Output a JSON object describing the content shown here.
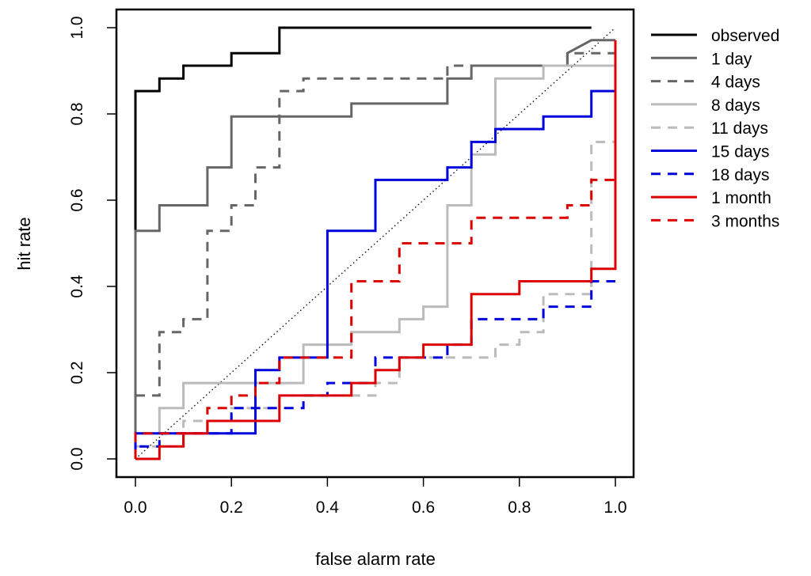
{
  "chart_data": {
    "type": "line",
    "xlabel": "false alarm rate",
    "ylabel": "hit rate",
    "xlim": [
      0,
      1
    ],
    "ylim": [
      0,
      1
    ],
    "xticks": [
      "0.0",
      "0.2",
      "0.4",
      "0.6",
      "0.8",
      "1.0"
    ],
    "yticks": [
      "0.0",
      "0.2",
      "0.4",
      "0.6",
      "0.8",
      "1.0"
    ],
    "grid": false,
    "legend_position": "right",
    "reference_line": {
      "style": "dotted",
      "color": "#000000",
      "x": [
        0,
        1
      ],
      "y": [
        0,
        1
      ]
    },
    "series": [
      {
        "name": "observed",
        "color": "#000000",
        "dash": false,
        "x": [
          0,
          0,
          0.05,
          0.05,
          0.1,
          0.1,
          0.2,
          0.2,
          0.3,
          0.3,
          0.95
        ],
        "y": [
          0,
          0.853,
          0.853,
          0.882,
          0.882,
          0.912,
          0.912,
          0.941,
          0.941,
          1.0,
          1.0
        ]
      },
      {
        "name": "1 day",
        "color": "#666666",
        "dash": false,
        "x": [
          0,
          0,
          0.05,
          0.05,
          0.15,
          0.15,
          0.2,
          0.2,
          0.45,
          0.45,
          0.65,
          0.65,
          0.7,
          0.7,
          0.9,
          0.9,
          0.95,
          1.0
        ],
        "y": [
          0.029,
          0.529,
          0.529,
          0.588,
          0.588,
          0.676,
          0.676,
          0.794,
          0.794,
          0.824,
          0.824,
          0.882,
          0.882,
          0.912,
          0.912,
          0.941,
          0.971,
          0.971
        ]
      },
      {
        "name": "4 days",
        "color": "#666666",
        "dash": true,
        "x": [
          0,
          0.05,
          0.05,
          0.1,
          0.1,
          0.15,
          0.15,
          0.2,
          0.2,
          0.25,
          0.25,
          0.3,
          0.3,
          0.35,
          0.35,
          0.65,
          0.65,
          0.9,
          0.9,
          1.0
        ],
        "y": [
          0.147,
          0.147,
          0.294,
          0.294,
          0.324,
          0.324,
          0.529,
          0.529,
          0.588,
          0.588,
          0.676,
          0.676,
          0.853,
          0.853,
          0.882,
          0.882,
          0.912,
          0.912,
          0.941,
          0.941
        ]
      },
      {
        "name": "8 days",
        "color": "#bbbbbb",
        "dash": false,
        "x": [
          0,
          0.05,
          0.05,
          0.1,
          0.1,
          0.35,
          0.35,
          0.45,
          0.45,
          0.55,
          0.55,
          0.6,
          0.6,
          0.65,
          0.65,
          0.7,
          0.7,
          0.75,
          0.75,
          0.85,
          0.85,
          1.0
        ],
        "y": [
          0.059,
          0.059,
          0.118,
          0.118,
          0.176,
          0.176,
          0.265,
          0.265,
          0.294,
          0.294,
          0.324,
          0.324,
          0.353,
          0.353,
          0.588,
          0.588,
          0.706,
          0.706,
          0.882,
          0.882,
          0.912,
          0.912
        ]
      },
      {
        "name": "11 days",
        "color": "#bbbbbb",
        "dash": true,
        "x": [
          0,
          0.1,
          0.1,
          0.2,
          0.2,
          0.3,
          0.3,
          0.5,
          0.5,
          0.55,
          0.55,
          0.75,
          0.75,
          0.8,
          0.8,
          0.85,
          0.85,
          0.95,
          0.95,
          1.0
        ],
        "y": [
          0.029,
          0.029,
          0.088,
          0.088,
          0.118,
          0.118,
          0.147,
          0.147,
          0.176,
          0.176,
          0.235,
          0.235,
          0.265,
          0.265,
          0.294,
          0.294,
          0.382,
          0.382,
          0.735,
          0.735
        ]
      },
      {
        "name": "15 days",
        "color": "#0000dd",
        "dash": false,
        "x": [
          0,
          0,
          0.25,
          0.25,
          0.3,
          0.3,
          0.4,
          0.4,
          0.5,
          0.5,
          0.65,
          0.65,
          0.7,
          0.7,
          0.75,
          0.75,
          0.85,
          0.85,
          0.95,
          0.95,
          1.0
        ],
        "y": [
          0,
          0.059,
          0.059,
          0.206,
          0.206,
          0.235,
          0.235,
          0.529,
          0.529,
          0.647,
          0.647,
          0.676,
          0.676,
          0.735,
          0.735,
          0.765,
          0.765,
          0.794,
          0.794,
          0.853,
          0.853
        ]
      },
      {
        "name": "18 days",
        "color": "#0000dd",
        "dash": true,
        "x": [
          0,
          0,
          0.05,
          0.05,
          0.2,
          0.2,
          0.35,
          0.35,
          0.4,
          0.4,
          0.5,
          0.5,
          0.65,
          0.65,
          0.7,
          0.7,
          0.85,
          0.85,
          0.95,
          0.95,
          1.0
        ],
        "y": [
          0,
          0.029,
          0.029,
          0.059,
          0.059,
          0.118,
          0.118,
          0.147,
          0.147,
          0.176,
          0.176,
          0.235,
          0.235,
          0.265,
          0.265,
          0.324,
          0.324,
          0.353,
          0.353,
          0.412,
          0.412
        ]
      },
      {
        "name": "1 month",
        "color": "#dd0000",
        "dash": false,
        "x": [
          0,
          0.05,
          0.05,
          0.1,
          0.1,
          0.15,
          0.15,
          0.3,
          0.3,
          0.45,
          0.45,
          0.5,
          0.5,
          0.55,
          0.55,
          0.6,
          0.6,
          0.7,
          0.7,
          0.8,
          0.8,
          0.95,
          0.95,
          1.0,
          1.0
        ],
        "y": [
          0,
          0,
          0.029,
          0.029,
          0.059,
          0.059,
          0.088,
          0.088,
          0.147,
          0.147,
          0.176,
          0.176,
          0.206,
          0.206,
          0.235,
          0.235,
          0.265,
          0.265,
          0.382,
          0.382,
          0.412,
          0.412,
          0.441,
          0.441,
          0.971
        ]
      },
      {
        "name": "3 months",
        "color": "#dd0000",
        "dash": true,
        "x": [
          0,
          0,
          0.15,
          0.15,
          0.2,
          0.2,
          0.25,
          0.25,
          0.3,
          0.3,
          0.45,
          0.45,
          0.55,
          0.55,
          0.7,
          0.7,
          0.9,
          0.9,
          0.95,
          0.95,
          1.0
        ],
        "y": [
          0,
          0.059,
          0.059,
          0.118,
          0.118,
          0.147,
          0.147,
          0.176,
          0.176,
          0.235,
          0.235,
          0.412,
          0.412,
          0.5,
          0.5,
          0.559,
          0.559,
          0.588,
          0.588,
          0.647,
          0.647
        ]
      }
    ]
  }
}
